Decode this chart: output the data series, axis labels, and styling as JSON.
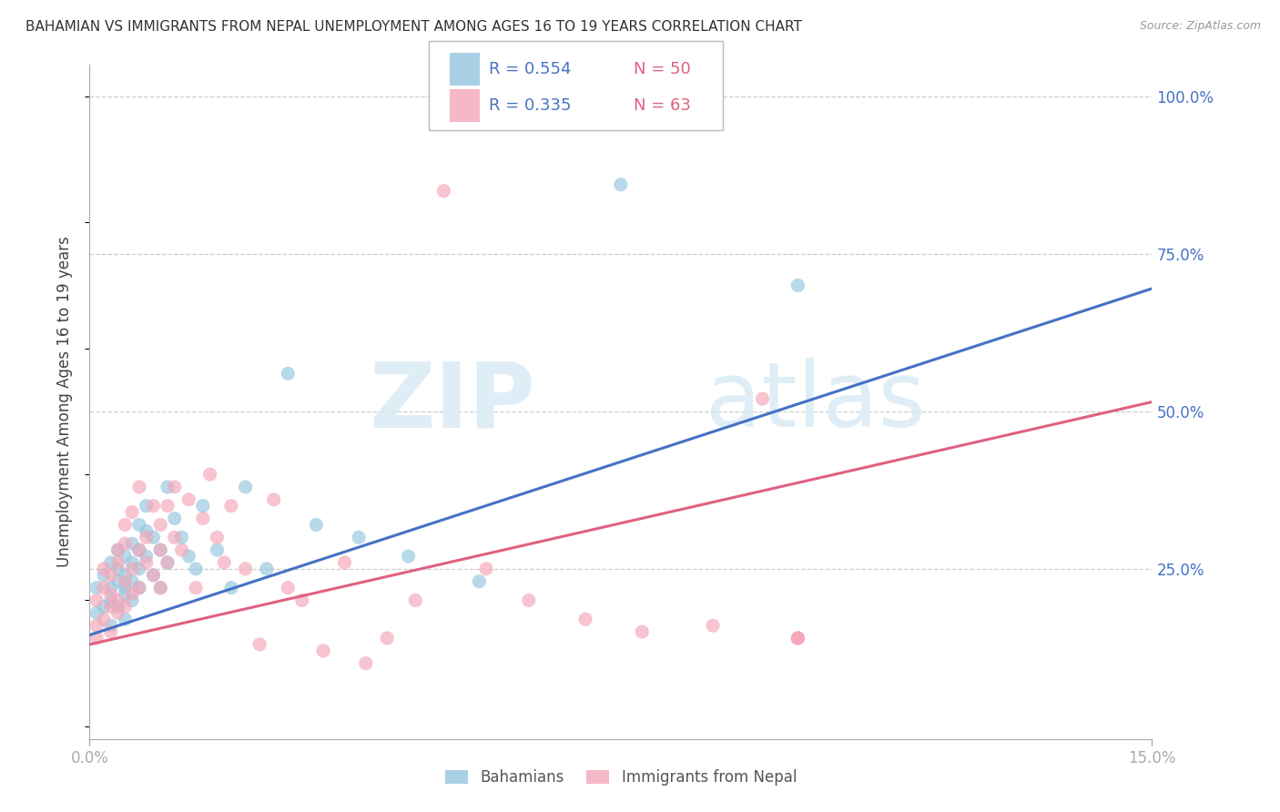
{
  "title": "BAHAMIAN VS IMMIGRANTS FROM NEPAL UNEMPLOYMENT AMONG AGES 16 TO 19 YEARS CORRELATION CHART",
  "source": "Source: ZipAtlas.com",
  "ylabel": "Unemployment Among Ages 16 to 19 years",
  "xlim": [
    0.0,
    0.15
  ],
  "ylim": [
    -0.02,
    1.05
  ],
  "yticks_right": [
    1.0,
    0.75,
    0.5,
    0.25
  ],
  "ytick_labels_right": [
    "100.0%",
    "75.0%",
    "50.0%",
    "25.0%"
  ],
  "xticks": [
    0.0,
    0.15
  ],
  "xtick_labels": [
    "0.0%",
    "15.0%"
  ],
  "legend_r1": "R = 0.554",
  "legend_n1": "N = 50",
  "legend_r2": "R = 0.335",
  "legend_n2": "N = 63",
  "legend_label1": "Bahamians",
  "legend_label2": "Immigrants from Nepal",
  "blue_color": "#92c5de",
  "pink_color": "#f4a5b8",
  "blue_line_color": "#4472c4",
  "pink_line_color": "#e06080",
  "right_axis_color": "#4472c4",
  "watermark_color": "#daeaf5",
  "blue_line_x": [
    0.0,
    0.15
  ],
  "blue_line_y": [
    0.145,
    0.695
  ],
  "pink_line_x": [
    0.0,
    0.15
  ],
  "pink_line_y": [
    0.13,
    0.515
  ],
  "bahamians_x": [
    0.001,
    0.001,
    0.002,
    0.002,
    0.003,
    0.003,
    0.003,
    0.003,
    0.004,
    0.004,
    0.004,
    0.004,
    0.005,
    0.005,
    0.005,
    0.005,
    0.005,
    0.006,
    0.006,
    0.006,
    0.006,
    0.007,
    0.007,
    0.007,
    0.007,
    0.008,
    0.008,
    0.008,
    0.009,
    0.009,
    0.01,
    0.01,
    0.011,
    0.011,
    0.012,
    0.013,
    0.014,
    0.015,
    0.016,
    0.018,
    0.02,
    0.022,
    0.025,
    0.028,
    0.032,
    0.038,
    0.045,
    0.055,
    0.075,
    0.1
  ],
  "bahamians_y": [
    0.18,
    0.22,
    0.19,
    0.24,
    0.2,
    0.26,
    0.22,
    0.16,
    0.23,
    0.28,
    0.19,
    0.25,
    0.17,
    0.22,
    0.27,
    0.21,
    0.24,
    0.2,
    0.26,
    0.23,
    0.29,
    0.22,
    0.28,
    0.25,
    0.32,
    0.27,
    0.31,
    0.35,
    0.24,
    0.3,
    0.22,
    0.28,
    0.26,
    0.38,
    0.33,
    0.3,
    0.27,
    0.25,
    0.35,
    0.28,
    0.22,
    0.38,
    0.25,
    0.56,
    0.32,
    0.3,
    0.27,
    0.23,
    0.86,
    0.7
  ],
  "nepal_x": [
    0.001,
    0.001,
    0.001,
    0.002,
    0.002,
    0.002,
    0.003,
    0.003,
    0.003,
    0.003,
    0.004,
    0.004,
    0.004,
    0.004,
    0.005,
    0.005,
    0.005,
    0.005,
    0.006,
    0.006,
    0.006,
    0.007,
    0.007,
    0.007,
    0.008,
    0.008,
    0.009,
    0.009,
    0.01,
    0.01,
    0.01,
    0.011,
    0.011,
    0.012,
    0.012,
    0.013,
    0.014,
    0.015,
    0.016,
    0.017,
    0.018,
    0.019,
    0.02,
    0.022,
    0.024,
    0.026,
    0.028,
    0.03,
    0.033,
    0.036,
    0.039,
    0.042,
    0.046,
    0.05,
    0.056,
    0.062,
    0.07,
    0.078,
    0.088,
    0.095,
    0.1,
    0.1,
    0.1
  ],
  "nepal_y": [
    0.14,
    0.2,
    0.16,
    0.22,
    0.17,
    0.25,
    0.19,
    0.24,
    0.15,
    0.21,
    0.26,
    0.2,
    0.28,
    0.18,
    0.23,
    0.29,
    0.19,
    0.32,
    0.25,
    0.34,
    0.21,
    0.28,
    0.22,
    0.38,
    0.3,
    0.26,
    0.35,
    0.24,
    0.32,
    0.28,
    0.22,
    0.35,
    0.26,
    0.3,
    0.38,
    0.28,
    0.36,
    0.22,
    0.33,
    0.4,
    0.3,
    0.26,
    0.35,
    0.25,
    0.13,
    0.36,
    0.22,
    0.2,
    0.12,
    0.26,
    0.1,
    0.14,
    0.2,
    0.85,
    0.25,
    0.2,
    0.17,
    0.15,
    0.16,
    0.52,
    0.14,
    0.14,
    0.14
  ]
}
